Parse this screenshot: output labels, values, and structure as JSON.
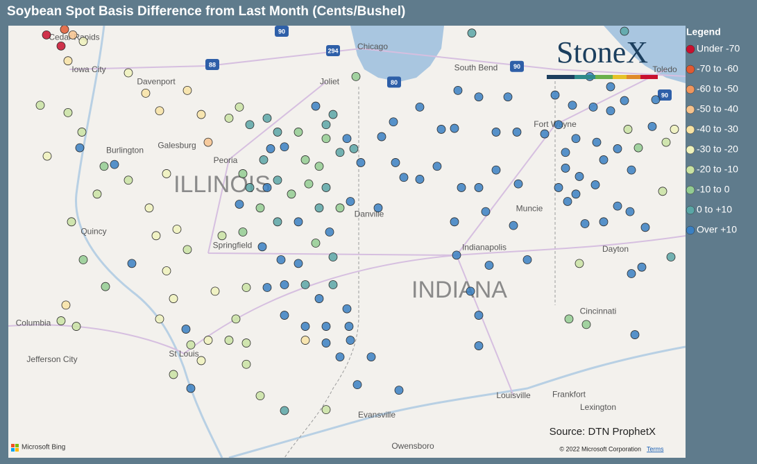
{
  "map": {
    "title": "Soybean Spot Basis Difference from Last Month (Cents/Bushel)",
    "logo": "StoneX",
    "source": "Source: DTN ProphetX",
    "provider": "Microsoft Bing",
    "copyright": "© 2022 Microsoft Corporation",
    "terms": "Terms",
    "lonlim": [
      -92.7,
      -82.94
    ],
    "latlim": [
      37.43,
      42.1
    ],
    "legend": {
      "title": "Legend",
      "bins": [
        {
          "label": "Under -70",
          "color": "#c8102e"
        },
        {
          "label": "-70 to -60",
          "color": "#e05a32"
        },
        {
          "label": "-60 to -50",
          "color": "#f0965e"
        },
        {
          "label": "-50 to -40",
          "color": "#f6c38e"
        },
        {
          "label": "-40 to -30",
          "color": "#f7e3a4"
        },
        {
          "label": "-30 to -20",
          "color": "#eef2bc"
        },
        {
          "label": "-20 to -10",
          "color": "#c9e3a3"
        },
        {
          "label": "-10 to 0",
          "color": "#93cc92"
        },
        {
          "label": "0 to +10",
          "color": "#5aa6a6"
        },
        {
          "label": "Over +10",
          "color": "#3a80c2"
        }
      ]
    },
    "places": [
      {
        "name": "Cedar Rapids",
        "lon": -91.75,
        "lat": 41.97
      },
      {
        "name": "Iowa City",
        "lon": -91.54,
        "lat": 41.62
      },
      {
        "name": "Davenport",
        "lon": -90.57,
        "lat": 41.49
      },
      {
        "name": "Burlington",
        "lon": -91.02,
        "lat": 40.75
      },
      {
        "name": "Galesburg",
        "lon": -90.27,
        "lat": 40.8
      },
      {
        "name": "Peoria",
        "lon": -89.57,
        "lat": 40.64
      },
      {
        "name": "Quincy",
        "lon": -91.47,
        "lat": 39.87
      },
      {
        "name": "Springfield",
        "lon": -89.47,
        "lat": 39.72
      },
      {
        "name": "Joliet",
        "lon": -88.07,
        "lat": 41.49
      },
      {
        "name": "Chicago",
        "lon": -87.45,
        "lat": 41.87
      },
      {
        "name": "South Bend",
        "lon": -85.96,
        "lat": 41.64
      },
      {
        "name": "Toledo",
        "lon": -83.24,
        "lat": 41.62
      },
      {
        "name": "Fort Wayne",
        "lon": -84.82,
        "lat": 41.03
      },
      {
        "name": "Muncie",
        "lon": -85.19,
        "lat": 40.12
      },
      {
        "name": "Danville",
        "lon": -87.5,
        "lat": 40.06
      },
      {
        "name": "Indianapolis",
        "lon": -85.84,
        "lat": 39.7
      },
      {
        "name": "Dayton",
        "lon": -83.95,
        "lat": 39.68
      },
      {
        "name": "Cincinnati",
        "lon": -84.2,
        "lat": 39.01
      },
      {
        "name": "Columbia",
        "lon": -92.34,
        "lat": 38.88
      },
      {
        "name": "Jefferson City",
        "lon": -92.07,
        "lat": 38.49
      },
      {
        "name": "St Louis",
        "lon": -90.17,
        "lat": 38.55
      },
      {
        "name": "Evansville",
        "lon": -87.39,
        "lat": 37.89
      },
      {
        "name": "Owensboro",
        "lon": -86.87,
        "lat": 37.55
      },
      {
        "name": "Louisville",
        "lon": -85.42,
        "lat": 38.1
      },
      {
        "name": "Frankfort",
        "lon": -84.62,
        "lat": 38.11
      },
      {
        "name": "Lexington",
        "lon": -84.2,
        "lat": 37.97
      }
    ],
    "states": [
      {
        "name": "ILLINOIS",
        "lon": -89.62,
        "lat": 40.37
      },
      {
        "name": "INDIANA",
        "lon": -86.2,
        "lat": 39.23
      }
    ],
    "shields": [
      {
        "name": "90",
        "lon": -88.76,
        "lat": 42.04
      },
      {
        "name": "294",
        "lon": -88.02,
        "lat": 41.83
      },
      {
        "name": "88",
        "lon": -89.76,
        "lat": 41.68
      },
      {
        "name": "80",
        "lon": -87.14,
        "lat": 41.49
      },
      {
        "name": "90",
        "lon": -85.37,
        "lat": 41.66
      },
      {
        "name": "90",
        "lon": -83.24,
        "lat": 41.35
      }
    ],
    "points": [
      [
        -92.15,
        42.0,
        0
      ],
      [
        -91.94,
        41.88,
        0
      ],
      [
        -91.89,
        42.06,
        1
      ],
      [
        -91.77,
        42.0,
        3
      ],
      [
        -91.62,
        41.93,
        5
      ],
      [
        -91.84,
        41.72,
        4
      ],
      [
        -92.24,
        41.24,
        6
      ],
      [
        -91.84,
        41.16,
        6
      ],
      [
        -91.64,
        40.95,
        6
      ],
      [
        -91.67,
        40.78,
        9
      ],
      [
        -92.14,
        40.69,
        5
      ],
      [
        -91.17,
        40.6,
        9
      ],
      [
        -91.32,
        40.58,
        7
      ],
      [
        -90.97,
        40.43,
        6
      ],
      [
        -91.42,
        40.28,
        6
      ],
      [
        -91.79,
        39.98,
        6
      ],
      [
        -91.62,
        39.57,
        7
      ],
      [
        -91.87,
        39.08,
        4
      ],
      [
        -91.94,
        38.91,
        6
      ],
      [
        -91.72,
        38.85,
        6
      ],
      [
        -91.3,
        39.28,
        7
      ],
      [
        -90.92,
        39.53,
        9
      ],
      [
        -90.97,
        41.59,
        5
      ],
      [
        -90.72,
        41.37,
        4
      ],
      [
        -90.52,
        41.18,
        4
      ],
      [
        -90.12,
        41.4,
        4
      ],
      [
        -89.92,
        41.14,
        4
      ],
      [
        -89.82,
        40.84,
        3
      ],
      [
        -90.42,
        40.5,
        5
      ],
      [
        -90.67,
        40.13,
        5
      ],
      [
        -90.57,
        39.83,
        5
      ],
      [
        -90.27,
        39.9,
        5
      ],
      [
        -90.42,
        39.45,
        5
      ],
      [
        -90.32,
        39.15,
        5
      ],
      [
        -90.52,
        38.93,
        5
      ],
      [
        -90.14,
        38.82,
        9
      ],
      [
        -90.07,
        38.65,
        6
      ],
      [
        -89.82,
        38.7,
        5
      ],
      [
        -90.32,
        38.33,
        6
      ],
      [
        -90.07,
        38.18,
        9
      ],
      [
        -89.92,
        38.48,
        5
      ],
      [
        -89.52,
        41.1,
        6
      ],
      [
        -89.37,
        41.22,
        6
      ],
      [
        -89.22,
        41.03,
        8
      ],
      [
        -88.97,
        41.1,
        8
      ],
      [
        -88.82,
        40.95,
        8
      ],
      [
        -88.92,
        40.77,
        9
      ],
      [
        -88.72,
        40.79,
        9
      ],
      [
        -88.52,
        40.95,
        7
      ],
      [
        -88.27,
        41.23,
        9
      ],
      [
        -88.12,
        41.03,
        8
      ],
      [
        -88.02,
        41.14,
        8
      ],
      [
        -88.12,
        40.88,
        7
      ],
      [
        -88.42,
        40.65,
        7
      ],
      [
        -88.22,
        40.58,
        7
      ],
      [
        -87.92,
        40.73,
        8
      ],
      [
        -87.82,
        40.88,
        9
      ],
      [
        -87.72,
        40.77,
        8
      ],
      [
        -89.32,
        40.5,
        7
      ],
      [
        -89.22,
        40.35,
        8
      ],
      [
        -88.97,
        40.35,
        9
      ],
      [
        -88.82,
        40.43,
        8
      ],
      [
        -88.62,
        40.28,
        7
      ],
      [
        -88.37,
        40.39,
        7
      ],
      [
        -88.12,
        40.35,
        8
      ],
      [
        -89.37,
        40.17,
        9
      ],
      [
        -89.07,
        40.13,
        7
      ],
      [
        -88.82,
        39.98,
        8
      ],
      [
        -88.52,
        39.98,
        9
      ],
      [
        -88.22,
        40.13,
        8
      ],
      [
        -87.92,
        40.13,
        7
      ],
      [
        -87.77,
        40.2,
        9
      ],
      [
        -87.37,
        40.13,
        9
      ],
      [
        -87.62,
        40.62,
        9
      ],
      [
        -88.27,
        39.75,
        7
      ],
      [
        -88.07,
        39.87,
        9
      ],
      [
        -88.02,
        39.6,
        8
      ],
      [
        -88.52,
        39.53,
        9
      ],
      [
        -88.77,
        39.57,
        9
      ],
      [
        -89.04,
        39.71,
        9
      ],
      [
        -89.32,
        39.87,
        7
      ],
      [
        -89.62,
        39.83,
        6
      ],
      [
        -88.97,
        39.27,
        9
      ],
      [
        -88.72,
        39.3,
        9
      ],
      [
        -88.42,
        39.3,
        8
      ],
      [
        -88.22,
        39.15,
        9
      ],
      [
        -88.02,
        39.3,
        8
      ],
      [
        -87.82,
        39.04,
        9
      ],
      [
        -88.72,
        38.97,
        9
      ],
      [
        -88.42,
        38.85,
        9
      ],
      [
        -88.12,
        38.85,
        9
      ],
      [
        -87.79,
        38.85,
        9
      ],
      [
        -88.42,
        38.7,
        4
      ],
      [
        -88.12,
        38.67,
        9
      ],
      [
        -87.77,
        38.7,
        9
      ],
      [
        -87.92,
        38.52,
        9
      ],
      [
        -87.47,
        38.52,
        9
      ],
      [
        -89.27,
        38.67,
        6
      ],
      [
        -89.27,
        38.44,
        6
      ],
      [
        -89.52,
        38.7,
        6
      ],
      [
        -90.12,
        39.68,
        6
      ],
      [
        -89.27,
        39.27,
        6
      ],
      [
        -89.02,
        40.65,
        8
      ],
      [
        -87.67,
        38.22,
        9
      ],
      [
        -87.07,
        38.16,
        9
      ],
      [
        -88.72,
        37.94,
        8
      ],
      [
        -88.12,
        37.95,
        6
      ],
      [
        -89.07,
        38.1,
        6
      ],
      [
        -89.42,
        38.93,
        6
      ],
      [
        -89.72,
        39.23,
        5
      ],
      [
        -87.15,
        41.06,
        9
      ],
      [
        -87.32,
        40.9,
        9
      ],
      [
        -87.12,
        40.62,
        9
      ],
      [
        -87.0,
        40.46,
        9
      ],
      [
        -86.77,
        40.44,
        9
      ],
      [
        -86.46,
        40.98,
        9
      ],
      [
        -86.27,
        40.99,
        9
      ],
      [
        -86.22,
        41.4,
        9
      ],
      [
        -85.92,
        41.33,
        9
      ],
      [
        -85.5,
        41.33,
        9
      ],
      [
        -85.67,
        40.95,
        9
      ],
      [
        -85.37,
        40.95,
        9
      ],
      [
        -86.17,
        40.35,
        9
      ],
      [
        -85.92,
        40.35,
        9
      ],
      [
        -85.67,
        40.54,
        9
      ],
      [
        -85.35,
        40.39,
        9
      ],
      [
        -85.82,
        40.09,
        9
      ],
      [
        -85.42,
        39.94,
        9
      ],
      [
        -86.27,
        39.98,
        9
      ],
      [
        -86.24,
        39.62,
        9
      ],
      [
        -85.77,
        39.51,
        9
      ],
      [
        -86.04,
        39.23,
        9
      ],
      [
        -85.92,
        38.97,
        9
      ],
      [
        -85.92,
        38.64,
        9
      ],
      [
        -85.22,
        39.57,
        9
      ],
      [
        -86.52,
        40.58,
        9
      ],
      [
        -86.77,
        41.22,
        9
      ],
      [
        -84.82,
        41.35,
        9
      ],
      [
        -84.32,
        41.55,
        9
      ],
      [
        -84.02,
        41.44,
        9
      ],
      [
        -84.57,
        41.24,
        9
      ],
      [
        -84.27,
        41.22,
        9
      ],
      [
        -84.02,
        41.18,
        9
      ],
      [
        -83.82,
        41.29,
        9
      ],
      [
        -83.37,
        41.3,
        9
      ],
      [
        -84.97,
        40.93,
        9
      ],
      [
        -84.77,
        41.03,
        9
      ],
      [
        -84.52,
        40.88,
        9
      ],
      [
        -84.22,
        40.84,
        9
      ],
      [
        -83.92,
        40.77,
        9
      ],
      [
        -84.12,
        40.65,
        9
      ],
      [
        -84.67,
        40.73,
        9
      ],
      [
        -84.67,
        40.56,
        9
      ],
      [
        -84.47,
        40.47,
        9
      ],
      [
        -84.24,
        40.38,
        9
      ],
      [
        -84.52,
        40.28,
        9
      ],
      [
        -84.64,
        40.2,
        9
      ],
      [
        -84.77,
        40.35,
        9
      ],
      [
        -84.39,
        39.96,
        9
      ],
      [
        -84.12,
        39.98,
        9
      ],
      [
        -83.92,
        40.15,
        9
      ],
      [
        -83.74,
        40.09,
        9
      ],
      [
        -83.52,
        39.92,
        9
      ],
      [
        -83.72,
        40.54,
        9
      ],
      [
        -83.42,
        41.01,
        9
      ],
      [
        -83.77,
        40.98,
        6
      ],
      [
        -83.62,
        40.78,
        7
      ],
      [
        -83.22,
        40.84,
        6
      ],
      [
        -83.1,
        40.98,
        5
      ],
      [
        -83.82,
        42.04,
        8
      ],
      [
        -83.27,
        40.31,
        6
      ],
      [
        -83.72,
        39.42,
        9
      ],
      [
        -83.57,
        39.49,
        9
      ],
      [
        -84.47,
        39.53,
        6
      ],
      [
        -84.62,
        38.93,
        7
      ],
      [
        -84.37,
        38.87,
        7
      ],
      [
        -83.67,
        38.76,
        9
      ],
      [
        -83.15,
        39.6,
        8
      ],
      [
        -86.02,
        42.02,
        8
      ],
      [
        -87.69,
        41.55,
        7
      ]
    ]
  }
}
